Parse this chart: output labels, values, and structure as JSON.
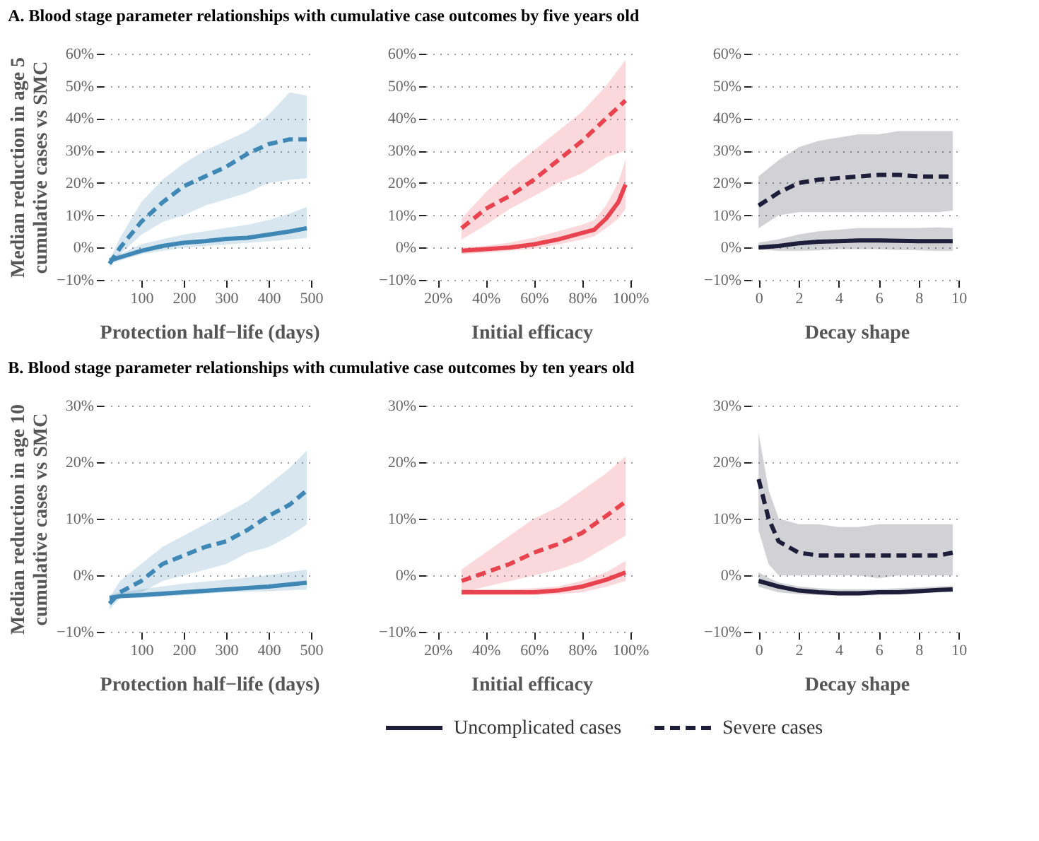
{
  "chart_data": [
    {
      "type": "line",
      "title": "A. Blood stage parameter relationships with cumulative case outcomes by five years old",
      "xlabel": "Protection half−life (days)",
      "ylabel": "Median reduction in age 5 cumulative cases vs SMC",
      "xlim": [
        10,
        510
      ],
      "ylim": [
        -10,
        60
      ],
      "xticks": [
        100,
        200,
        300,
        400,
        500
      ],
      "yticks": [
        {
          "value": -10,
          "label": "−10%"
        },
        {
          "value": 0,
          "label": "0%"
        },
        {
          "value": 10,
          "label": "10%"
        },
        {
          "value": 20,
          "label": "20%"
        },
        {
          "value": 30,
          "label": "30%"
        },
        {
          "value": 40,
          "label": "40%"
        },
        {
          "value": 50,
          "label": "50%"
        },
        {
          "value": 60,
          "label": "60%"
        }
      ],
      "grid": "y",
      "series": [
        {
          "color": "#3f87b5",
          "line_style": "solid",
          "x": [
            25,
            50,
            100,
            150,
            200,
            250,
            300,
            350,
            400,
            450,
            490
          ],
          "values": [
            -4,
            -3,
            -1,
            0.5,
            1.5,
            2,
            2.7,
            3,
            4,
            5,
            6
          ],
          "lower": [
            -5,
            -4,
            -2,
            -1,
            0,
            0.5,
            1,
            1.5,
            2,
            2.5,
            3
          ],
          "upper": [
            -3,
            -2,
            1,
            2.5,
            4,
            5,
            6,
            7,
            8.5,
            10.5,
            12.5
          ]
        },
        {
          "color": "#3f87b5",
          "line_style": "dashed",
          "x": [
            25,
            50,
            100,
            150,
            200,
            250,
            300,
            350,
            400,
            450,
            490
          ],
          "values": [
            -5,
            0,
            8,
            14,
            19,
            22,
            25,
            29,
            32,
            33.5,
            33.5
          ],
          "lower": [
            -6,
            -2,
            4,
            8,
            10,
            13,
            15,
            17,
            20,
            21,
            21.5
          ],
          "upper": [
            -4,
            3,
            14,
            21,
            26,
            30,
            33,
            36,
            41,
            48,
            47
          ]
        }
      ]
    },
    {
      "type": "line",
      "xlabel": "Initial efficacy",
      "xlim": [
        15,
        103
      ],
      "ylim": [
        -10,
        60
      ],
      "xticks": [
        {
          "value": 20,
          "label": "20%"
        },
        {
          "value": 40,
          "label": "40%"
        },
        {
          "value": 60,
          "label": "60%"
        },
        {
          "value": 80,
          "label": "80%"
        },
        {
          "value": 100,
          "label": "100%"
        }
      ],
      "yticks": [
        {
          "value": -10,
          "label": "−10%"
        },
        {
          "value": 0,
          "label": "0%"
        },
        {
          "value": 10,
          "label": "10%"
        },
        {
          "value": 20,
          "label": "20%"
        },
        {
          "value": 30,
          "label": "30%"
        },
        {
          "value": 40,
          "label": "40%"
        },
        {
          "value": 50,
          "label": "50%"
        },
        {
          "value": 60,
          "label": "60%"
        }
      ],
      "grid": "y",
      "series": [
        {
          "color": "#e8434f",
          "line_style": "solid",
          "x": [
            30,
            40,
            50,
            60,
            70,
            80,
            85,
            90,
            95,
            98
          ],
          "values": [
            -1,
            -0.5,
            0,
            1,
            2.5,
            4.5,
            5.5,
            9,
            14,
            19.5
          ],
          "lower": [
            -2,
            -1.5,
            -1,
            -0.3,
            1,
            2.5,
            3.5,
            6,
            9,
            12
          ],
          "upper": [
            0,
            0.5,
            1.5,
            3,
            5,
            7,
            8.5,
            13,
            20,
            27
          ]
        },
        {
          "color": "#e8434f",
          "line_style": "dashed",
          "x": [
            30,
            40,
            50,
            60,
            70,
            80,
            90,
            98
          ],
          "values": [
            6,
            12,
            16,
            21,
            27,
            33,
            40,
            45.5
          ],
          "lower": [
            2.5,
            7,
            12,
            16,
            20,
            23,
            28,
            30
          ],
          "upper": [
            9,
            17,
            24,
            30,
            36,
            42,
            50,
            58
          ]
        }
      ]
    },
    {
      "type": "line",
      "xlabel": "Decay shape",
      "xlim": [
        -0.4,
        10.2
      ],
      "ylim": [
        -10,
        60
      ],
      "xticks": [
        0,
        2,
        4,
        6,
        8,
        10
      ],
      "yticks": [
        {
          "value": -10,
          "label": "−10%"
        },
        {
          "value": 0,
          "label": "0%"
        },
        {
          "value": 10,
          "label": "10%"
        },
        {
          "value": 20,
          "label": "20%"
        },
        {
          "value": 30,
          "label": "30%"
        },
        {
          "value": 40,
          "label": "40%"
        },
        {
          "value": 50,
          "label": "50%"
        },
        {
          "value": 60,
          "label": "60%"
        }
      ],
      "grid": "y",
      "series": [
        {
          "color": "#1e1d3a",
          "line_style": "solid",
          "x": [
            0,
            1,
            2,
            3,
            4,
            5,
            6,
            7,
            8,
            9,
            9.7
          ],
          "values": [
            0,
            0.5,
            1.3,
            1.8,
            2,
            2.2,
            2.2,
            2.1,
            2,
            2,
            2
          ],
          "lower": [
            -0.5,
            -1,
            -1,
            -0.8,
            -0.5,
            -0.5,
            -0.5,
            -0.7,
            -0.8,
            -1,
            -1
          ],
          "upper": [
            1.5,
            2.5,
            4,
            5,
            5.5,
            6,
            6,
            6,
            6,
            6.2,
            6
          ]
        },
        {
          "color": "#1e1d3a",
          "line_style": "dashed",
          "x": [
            0,
            1,
            2,
            3,
            4,
            5,
            6,
            7,
            8,
            9,
            9.7
          ],
          "values": [
            13,
            17,
            20,
            21,
            21.5,
            22,
            22.5,
            22.5,
            22,
            22,
            22
          ],
          "lower": [
            6,
            10,
            11,
            11,
            11,
            11,
            11,
            11,
            11,
            11,
            11.5
          ],
          "upper": [
            22,
            27,
            31,
            33,
            34,
            35,
            35,
            36,
            36,
            36,
            36
          ]
        }
      ]
    },
    {
      "type": "line",
      "title": "B. Blood stage parameter relationships with cumulative case outcomes by ten years old",
      "xlabel": "Protection half−life (days)",
      "ylabel": "Median reduction in age 10 cumulative cases vs SMC",
      "xlim": [
        10,
        510
      ],
      "ylim": [
        -10,
        30
      ],
      "xticks": [
        100,
        200,
        300,
        400,
        500
      ],
      "yticks": [
        {
          "value": -10,
          "label": "−10%"
        },
        {
          "value": 0,
          "label": "0%"
        },
        {
          "value": 10,
          "label": "10%"
        },
        {
          "value": 20,
          "label": "20%"
        },
        {
          "value": 30,
          "label": "30%"
        }
      ],
      "grid": "y",
      "series": [
        {
          "color": "#3f87b5",
          "line_style": "solid",
          "x": [
            25,
            50,
            100,
            200,
            300,
            400,
            490
          ],
          "values": [
            -4,
            -3.7,
            -3.5,
            -3,
            -2.5,
            -2,
            -1.3
          ],
          "lower": [
            -4.5,
            -4,
            -4,
            -3.5,
            -3,
            -2.8,
            -2.5
          ],
          "upper": [
            -3.5,
            -3,
            -2.5,
            -1.5,
            -0.8,
            0,
            1
          ]
        },
        {
          "color": "#3f87b5",
          "line_style": "dashed",
          "x": [
            25,
            50,
            100,
            150,
            200,
            250,
            300,
            350,
            400,
            450,
            490
          ],
          "values": [
            -5,
            -3,
            -1,
            2,
            3.5,
            5,
            6,
            8,
            10.5,
            12.5,
            15
          ],
          "lower": [
            -6,
            -4,
            -3,
            -1,
            0,
            1,
            2,
            4,
            5,
            7,
            9
          ],
          "upper": [
            -4,
            -1,
            2,
            5,
            7,
            9,
            11,
            13,
            16,
            19,
            22
          ]
        }
      ]
    },
    {
      "type": "line",
      "xlabel": "Initial efficacy",
      "xlim": [
        15,
        103
      ],
      "ylim": [
        -10,
        30
      ],
      "xticks": [
        {
          "value": 20,
          "label": "20%"
        },
        {
          "value": 40,
          "label": "40%"
        },
        {
          "value": 60,
          "label": "60%"
        },
        {
          "value": 80,
          "label": "80%"
        },
        {
          "value": 100,
          "label": "100%"
        }
      ],
      "yticks": [
        {
          "value": -10,
          "label": "−10%"
        },
        {
          "value": 0,
          "label": "0%"
        },
        {
          "value": 10,
          "label": "10%"
        },
        {
          "value": 20,
          "label": "20%"
        },
        {
          "value": 30,
          "label": "30%"
        }
      ],
      "grid": "y",
      "series": [
        {
          "color": "#e8434f",
          "line_style": "solid",
          "x": [
            30,
            40,
            50,
            60,
            70,
            80,
            90,
            98
          ],
          "values": [
            -3,
            -3,
            -3,
            -3,
            -2.7,
            -2,
            -0.8,
            0.5
          ],
          "lower": [
            -3.5,
            -3.5,
            -3.5,
            -3.5,
            -3.3,
            -3,
            -2,
            -1
          ],
          "upper": [
            -2.5,
            -2.5,
            -2.5,
            -2.3,
            -2,
            -1,
            0.5,
            2.5
          ]
        },
        {
          "color": "#e8434f",
          "line_style": "dashed",
          "x": [
            30,
            40,
            50,
            60,
            70,
            80,
            90,
            98
          ],
          "values": [
            -1,
            0.5,
            2,
            4,
            5.5,
            7.5,
            10.5,
            13
          ],
          "lower": [
            -3,
            -2,
            -1,
            0,
            1,
            2.5,
            5,
            7
          ],
          "upper": [
            1,
            4,
            7,
            10,
            12,
            15,
            18,
            21
          ]
        }
      ]
    },
    {
      "type": "line",
      "xlabel": "Decay shape",
      "xlim": [
        -0.4,
        10.2
      ],
      "ylim": [
        -10,
        30
      ],
      "xticks": [
        0,
        2,
        4,
        6,
        8,
        10
      ],
      "yticks": [
        {
          "value": -10,
          "label": "−10%"
        },
        {
          "value": 0,
          "label": "0%"
        },
        {
          "value": 10,
          "label": "10%"
        },
        {
          "value": 20,
          "label": "20%"
        },
        {
          "value": 30,
          "label": "30%"
        }
      ],
      "grid": "y",
      "legend": "bottom",
      "series": [
        {
          "name": "Uncomplicated cases",
          "color": "#1e1d3a",
          "line_style": "solid",
          "x": [
            0,
            0.5,
            1,
            2,
            3,
            4,
            5,
            6,
            7,
            8,
            9,
            9.7
          ],
          "values": [
            -1,
            -1.5,
            -2,
            -2.7,
            -3,
            -3.2,
            -3.2,
            -3,
            -3,
            -2.8,
            -2.6,
            -2.5
          ],
          "lower": [
            -2,
            -2.5,
            -3,
            -3.3,
            -3.5,
            -3.6,
            -3.6,
            -3.5,
            -3.4,
            -3.2,
            -3,
            -2.9
          ],
          "upper": [
            0.5,
            -0.5,
            -1.3,
            -2,
            -2.3,
            -2.5,
            -2.5,
            -2.5,
            -2.3,
            -2.2,
            -2,
            -1.9
          ]
        },
        {
          "name": "Severe cases",
          "color": "#1e1d3a",
          "line_style": "dashed",
          "x": [
            0,
            0.5,
            1,
            2,
            3,
            4,
            5,
            6,
            7,
            8,
            9,
            9.7
          ],
          "values": [
            17,
            10,
            6,
            4,
            3.5,
            3.5,
            3.5,
            3.5,
            3.5,
            3.5,
            3.5,
            4
          ],
          "lower": [
            8,
            2,
            0,
            0,
            0,
            0,
            0,
            -0.5,
            0,
            0,
            0,
            0
          ],
          "upper": [
            25,
            15,
            10,
            9,
            9,
            8.5,
            8.5,
            9,
            9,
            9,
            9,
            9
          ]
        }
      ]
    }
  ]
}
